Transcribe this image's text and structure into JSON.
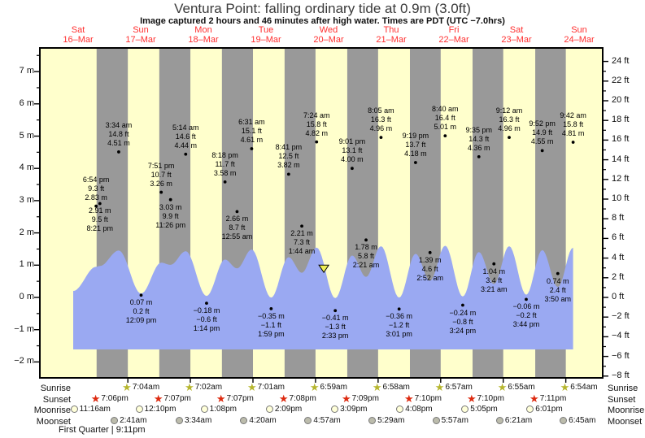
{
  "header": {
    "title": "Ventura Point: falling  ordinary tide at 0.9m (3.0ft)",
    "subtitle": "Image captured 2 hours and 46 minutes after high water. Times are PDT (UTC −7.0hrs)"
  },
  "days": [
    {
      "dow": "Sat",
      "date": "16–Mar"
    },
    {
      "dow": "Sun",
      "date": "17–Mar"
    },
    {
      "dow": "Mon",
      "date": "18–Mar"
    },
    {
      "dow": "Tue",
      "date": "19–Mar"
    },
    {
      "dow": "Wed",
      "date": "20–Mar"
    },
    {
      "dow": "Thu",
      "date": "21–Mar"
    },
    {
      "dow": "Fri",
      "date": "22–Mar"
    },
    {
      "dow": "Sat",
      "date": "23–Mar"
    },
    {
      "dow": "Sun",
      "date": "24–Mar"
    }
  ],
  "chart_data": {
    "type": "area",
    "title": "Ventura Point tide curve",
    "y_axis_left": {
      "unit": "m",
      "ticks": [
        7,
        6,
        5,
        4,
        3,
        2,
        1,
        0,
        -1,
        -2
      ],
      "minor_step": 0.5
    },
    "y_axis_right": {
      "unit": "ft",
      "ticks": [
        24,
        22,
        20,
        18,
        16,
        14,
        12,
        10,
        8,
        6,
        4,
        2,
        0,
        -2,
        -4,
        -6,
        -8
      ],
      "minor_step": 1
    },
    "tide_events": [
      {
        "day": 0,
        "time": "6:54 pm",
        "height_ft": 9.3,
        "height_m": 2.83,
        "type": "high"
      },
      {
        "day": 0,
        "time": "8:21 pm",
        "height_ft": 9.5,
        "height_m": 2.91,
        "type": "low"
      },
      {
        "day": 1,
        "time": "3:34 am",
        "height_ft": 14.8,
        "height_m": 4.51,
        "type": "high"
      },
      {
        "day": 1,
        "time": "12:09 pm",
        "height_ft": 0.2,
        "height_m": 0.07,
        "type": "low"
      },
      {
        "day": 1,
        "time": "7:51 pm",
        "height_ft": 10.7,
        "height_m": 3.26,
        "type": "high"
      },
      {
        "day": 1,
        "time": "11:26 pm",
        "height_ft": 9.9,
        "height_m": 3.03,
        "type": "low"
      },
      {
        "day": 2,
        "time": "5:14 am",
        "height_ft": 14.6,
        "height_m": 4.44,
        "type": "high"
      },
      {
        "day": 2,
        "time": "1:14 pm",
        "height_ft": -0.6,
        "height_m": -0.18,
        "type": "low"
      },
      {
        "day": 2,
        "time": "8:18 pm",
        "height_ft": 11.7,
        "height_m": 3.58,
        "type": "high"
      },
      {
        "day": 3,
        "time": "12:55 am",
        "height_ft": 8.7,
        "height_m": 2.66,
        "type": "low"
      },
      {
        "day": 3,
        "time": "6:31 am",
        "height_ft": 15.1,
        "height_m": 4.61,
        "type": "high"
      },
      {
        "day": 3,
        "time": "1:59 pm",
        "height_ft": -1.1,
        "height_m": -0.35,
        "type": "low"
      },
      {
        "day": 3,
        "time": "8:41 pm",
        "height_ft": 12.5,
        "height_m": 3.82,
        "type": "high"
      },
      {
        "day": 4,
        "time": "1:44 am",
        "height_ft": 7.3,
        "height_m": 2.21,
        "type": "low"
      },
      {
        "day": 4,
        "time": "7:24 am",
        "height_ft": 15.8,
        "height_m": 4.82,
        "type": "high"
      },
      {
        "day": 4,
        "time": "2:33 pm",
        "height_ft": -1.3,
        "height_m": -0.41,
        "type": "low"
      },
      {
        "day": 4,
        "time": "9:01 pm",
        "height_ft": 13.1,
        "height_m": 4.0,
        "type": "high"
      },
      {
        "day": 5,
        "time": "2:21 am",
        "height_ft": 5.8,
        "height_m": 1.78,
        "type": "low"
      },
      {
        "day": 5,
        "time": "8:05 am",
        "height_ft": 16.3,
        "height_m": 4.96,
        "type": "high"
      },
      {
        "day": 5,
        "time": "3:01 pm",
        "height_ft": -1.2,
        "height_m": -0.36,
        "type": "low"
      },
      {
        "day": 5,
        "time": "9:19 pm",
        "height_ft": 13.7,
        "height_m": 4.18,
        "type": "high"
      },
      {
        "day": 6,
        "time": "2:52 am",
        "height_ft": 4.6,
        "height_m": 1.39,
        "type": "low"
      },
      {
        "day": 6,
        "time": "8:40 am",
        "height_ft": 16.4,
        "height_m": 5.01,
        "type": "high"
      },
      {
        "day": 6,
        "time": "3:24 pm",
        "height_ft": -0.8,
        "height_m": -0.24,
        "type": "low"
      },
      {
        "day": 6,
        "time": "9:35 pm",
        "height_ft": 14.3,
        "height_m": 4.36,
        "type": "high"
      },
      {
        "day": 7,
        "time": "3:21 am",
        "height_ft": 3.4,
        "height_m": 1.04,
        "type": "low"
      },
      {
        "day": 7,
        "time": "9:12 am",
        "height_ft": 16.3,
        "height_m": 4.96,
        "type": "high"
      },
      {
        "day": 7,
        "time": "3:44 pm",
        "height_ft": -0.2,
        "height_m": -0.06,
        "type": "low"
      },
      {
        "day": 7,
        "time": "9:52 pm",
        "height_ft": 14.9,
        "height_m": 4.55,
        "type": "high"
      },
      {
        "day": 8,
        "time": "3:50 am",
        "height_ft": 2.4,
        "height_m": 0.74,
        "type": "low"
      },
      {
        "day": 8,
        "time": "9:42 am",
        "height_ft": 15.8,
        "height_m": 4.81,
        "type": "high"
      }
    ],
    "capture_marker": {
      "day": 4,
      "time": "10:10 am",
      "height_m": 0.9
    }
  },
  "almanac": {
    "rows": [
      {
        "label": "Sunrise",
        "icon": "sunrise-star",
        "start_day": 1,
        "times": [
          "7:04am",
          "7:02am",
          "7:01am",
          "6:59am",
          "6:58am",
          "6:57am",
          "6:55am",
          "6:54am"
        ]
      },
      {
        "label": "Sunset",
        "icon": "sunset-star",
        "start_day": 0,
        "times": [
          "7:06pm",
          "7:07pm",
          "7:07pm",
          "7:08pm",
          "7:09pm",
          "7:10pm",
          "7:10pm",
          "7:11pm"
        ]
      },
      {
        "label": "Moonrise",
        "icon": "moonrise-circle",
        "start_day": 0,
        "times": [
          "11:16am",
          "12:10pm",
          "1:08pm",
          "2:09pm",
          "3:09pm",
          "4:08pm",
          "5:05pm",
          "6:01pm"
        ]
      },
      {
        "label": "Moonset",
        "icon": "moonset-circle",
        "start_day": 1,
        "times": [
          "2:41am",
          "3:34am",
          "4:20am",
          "4:57am",
          "5:29am",
          "5:57am",
          "6:21am",
          "6:45am"
        ]
      }
    ],
    "moon_phase": "First Quarter | 9:11pm"
  },
  "colors": {
    "day_band": "#FFFFCC",
    "night_band": "#999999",
    "tide_fill": "#9AA9F2",
    "day_label": "#FF3030",
    "sunrise_star": "#B6B62E",
    "sunset_star": "#DD2A10",
    "moonrise_fill": "#FFFFD9",
    "moonset_fill": "#BCBCAC",
    "marker_fill": "#EEEE55",
    "dot": "#000000"
  }
}
